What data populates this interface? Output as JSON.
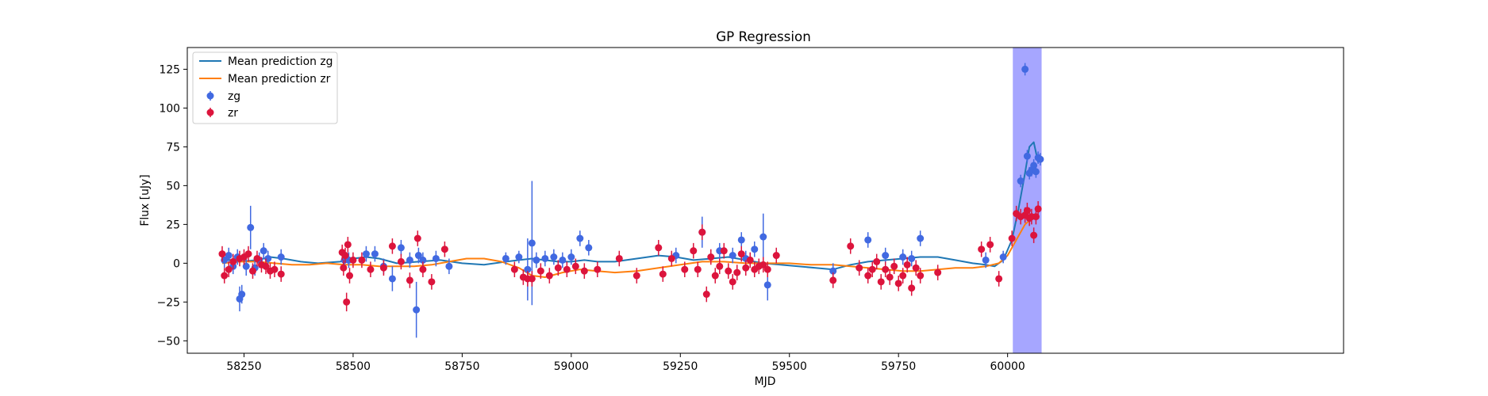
{
  "chart_data": {
    "type": "scatter",
    "title": "GP Regression",
    "xlabel": "MJD",
    "ylabel": "Flux [uJy]",
    "xlim": [
      58120,
      60770
    ],
    "ylim": [
      -58,
      139
    ],
    "xticks": [
      58250,
      58500,
      58750,
      59000,
      59250,
      59500,
      59750,
      60000
    ],
    "yticks": [
      -50,
      -25,
      0,
      25,
      50,
      75,
      100,
      125
    ],
    "highlight_band": {
      "x0": 60012,
      "x1": 60078,
      "color": "#0000ff",
      "opacity": 0.35
    },
    "colors": {
      "zg": "#4169e1",
      "zr": "#dc143c",
      "mean_zg": "#1f77b4",
      "mean_zr": "#ff7f0e"
    },
    "legend": {
      "position": "upper-left",
      "entries": [
        {
          "label": "Mean prediction zg",
          "kind": "line",
          "color": "#1f77b4"
        },
        {
          "label": "Mean prediction zr",
          "kind": "line",
          "color": "#ff7f0e"
        },
        {
          "label": "zg",
          "kind": "point",
          "color": "#4169e1"
        },
        {
          "label": "zr",
          "kind": "point",
          "color": "#dc143c"
        }
      ]
    },
    "series": [
      {
        "name": "Mean prediction zg",
        "kind": "line",
        "color": "#1f77b4",
        "x": [
          58200,
          58240,
          58280,
          58310,
          58340,
          58380,
          58420,
          58470,
          58500,
          58530,
          58560,
          58600,
          58650,
          58700,
          58750,
          58800,
          58850,
          58880,
          58910,
          58940,
          58970,
          59000,
          59030,
          59060,
          59100,
          59150,
          59200,
          59240,
          59280,
          59320,
          59360,
          59400,
          59440,
          59480,
          59520,
          59560,
          59600,
          59640,
          59680,
          59720,
          59760,
          59800,
          59840,
          59880,
          59920,
          59950,
          59970,
          59990,
          60010,
          60025,
          60040,
          60050,
          60060,
          60070
        ],
        "y": [
          3,
          1,
          2,
          4,
          3,
          1,
          0,
          1,
          3,
          4,
          3,
          0,
          1,
          2,
          0,
          -1,
          1,
          2,
          3,
          2,
          1,
          1,
          2,
          1,
          1,
          3,
          5,
          4,
          2,
          3,
          4,
          2,
          0,
          -1,
          -2,
          -3,
          -4,
          -1,
          1,
          2,
          3,
          4,
          4,
          2,
          0,
          -1,
          -2,
          2,
          15,
          35,
          58,
          75,
          78,
          65
        ]
      },
      {
        "name": "Mean prediction zr",
        "kind": "line",
        "color": "#ff7f0e",
        "x": [
          58200,
          58240,
          58280,
          58320,
          58360,
          58400,
          58440,
          58480,
          58520,
          58560,
          58600,
          58640,
          58680,
          58720,
          58760,
          58800,
          58840,
          58880,
          58910,
          58940,
          58980,
          59020,
          59060,
          59100,
          59150,
          59200,
          59250,
          59300,
          59350,
          59400,
          59450,
          59500,
          59550,
          59600,
          59640,
          59680,
          59720,
          59760,
          59800,
          59840,
          59880,
          59920,
          59950,
          59980,
          60000,
          60020,
          60040,
          60060,
          60070
        ],
        "y": [
          0,
          1,
          1,
          0,
          -1,
          -1,
          0,
          -1,
          -1,
          -2,
          -2,
          -2,
          -1,
          1,
          3,
          3,
          1,
          -3,
          -8,
          -9,
          -6,
          -4,
          -5,
          -6,
          -5,
          -3,
          -1,
          1,
          1,
          0,
          0,
          0,
          -1,
          -1,
          -2,
          -3,
          -4,
          -5,
          -5,
          -4,
          -3,
          -3,
          -2,
          0,
          5,
          15,
          25,
          30,
          31
        ]
      },
      {
        "name": "zg",
        "kind": "errorbar",
        "color": "#4169e1",
        "x": [
          58205,
          58215,
          58225,
          58235,
          58240,
          58245,
          58255,
          58265,
          58275,
          58285,
          58295,
          58305,
          58335,
          58480,
          58490,
          58530,
          58550,
          58570,
          58590,
          58610,
          58630,
          58645,
          58650,
          58660,
          58690,
          58720,
          58850,
          58880,
          58900,
          58910,
          58920,
          58940,
          58960,
          58980,
          59000,
          59020,
          59040,
          59240,
          59300,
          59340,
          59370,
          59390,
          59400,
          59420,
          59440,
          59450,
          59600,
          59680,
          59720,
          59760,
          59780,
          59800,
          59950,
          59990,
          60030,
          60040,
          60045,
          60050,
          60055,
          60060,
          60065,
          60070,
          60075
        ],
        "y": [
          2,
          5,
          -2,
          4,
          -23,
          -20,
          -2,
          23,
          -3,
          2,
          8,
          3,
          4,
          2,
          2,
          6,
          6,
          -2,
          -10,
          10,
          2,
          -30,
          5,
          2,
          3,
          -2,
          3,
          4,
          -4,
          13,
          2,
          3,
          4,
          2,
          4,
          16,
          10,
          5,
          20,
          8,
          5,
          15,
          3,
          9,
          17,
          -14,
          -5,
          15,
          5,
          4,
          3,
          16,
          2,
          4,
          53,
          125,
          69,
          58,
          60,
          63,
          59,
          68,
          67
        ],
        "err": [
          5,
          5,
          5,
          5,
          8,
          6,
          6,
          14,
          5,
          5,
          5,
          5,
          5,
          5,
          5,
          5,
          5,
          5,
          8,
          5,
          5,
          18,
          5,
          5,
          5,
          5,
          4,
          4,
          20,
          40,
          5,
          5,
          5,
          5,
          5,
          5,
          5,
          5,
          10,
          5,
          5,
          5,
          5,
          5,
          15,
          10,
          5,
          5,
          5,
          5,
          5,
          5,
          5,
          4,
          4,
          4,
          4,
          4,
          4,
          4,
          4,
          4,
          4
        ]
      },
      {
        "name": "zr",
        "kind": "errorbar",
        "color": "#dc143c",
        "x": [
          58200,
          58205,
          58215,
          58225,
          58240,
          58250,
          58260,
          58270,
          58280,
          58290,
          58300,
          58310,
          58320,
          58335,
          58475,
          58478,
          58482,
          58485,
          58488,
          58492,
          58500,
          58520,
          58540,
          58570,
          58590,
          58610,
          58630,
          58648,
          58660,
          58680,
          58710,
          58870,
          58890,
          58900,
          58910,
          58930,
          58950,
          58970,
          58990,
          59010,
          59030,
          59060,
          59110,
          59150,
          59200,
          59210,
          59230,
          59260,
          59280,
          59290,
          59300,
          59310,
          59320,
          59330,
          59340,
          59350,
          59360,
          59370,
          59380,
          59390,
          59400,
          59410,
          59420,
          59430,
          59440,
          59450,
          59470,
          59600,
          59640,
          59660,
          59680,
          59690,
          59700,
          59710,
          59720,
          59730,
          59740,
          59750,
          59760,
          59770,
          59780,
          59790,
          59800,
          59840,
          59940,
          59960,
          59980,
          60010,
          60020,
          60030,
          60040,
          60045,
          60050,
          60055,
          60060,
          60065,
          60070
        ],
        "y": [
          6,
          -8,
          -4,
          1,
          3,
          4,
          6,
          -5,
          3,
          -1,
          -2,
          -5,
          -4,
          -7,
          7,
          -3,
          5,
          -25,
          12,
          -8,
          2,
          2,
          -4,
          -3,
          11,
          1,
          -11,
          16,
          -4,
          -12,
          9,
          -4,
          -9,
          -10,
          -10,
          -5,
          -8,
          -3,
          -4,
          -2,
          -5,
          -4,
          3,
          -8,
          10,
          -7,
          3,
          -4,
          8,
          -4,
          20,
          -20,
          4,
          -8,
          -2,
          8,
          -5,
          -12,
          -6,
          6,
          -3,
          2,
          -4,
          -2,
          -1,
          -4,
          5,
          -11,
          11,
          -3,
          -8,
          -4,
          1,
          -12,
          -4,
          -9,
          -2,
          -13,
          -8,
          -1,
          -16,
          -3,
          -8,
          -6,
          9,
          12,
          -10,
          16,
          32,
          30,
          31,
          34,
          29,
          30,
          18,
          30,
          35
        ],
        "err": [
          5,
          5,
          5,
          5,
          5,
          5,
          5,
          5,
          5,
          5,
          5,
          5,
          5,
          5,
          5,
          5,
          5,
          6,
          5,
          5,
          5,
          5,
          5,
          5,
          5,
          5,
          5,
          5,
          5,
          5,
          5,
          5,
          5,
          5,
          5,
          5,
          5,
          5,
          5,
          5,
          5,
          5,
          5,
          5,
          5,
          5,
          5,
          5,
          5,
          5,
          5,
          5,
          5,
          5,
          5,
          5,
          5,
          5,
          5,
          5,
          5,
          5,
          5,
          5,
          5,
          5,
          5,
          5,
          5,
          5,
          5,
          5,
          5,
          5,
          5,
          5,
          5,
          5,
          5,
          5,
          5,
          5,
          5,
          5,
          5,
          5,
          5,
          5,
          5,
          5,
          5,
          5,
          5,
          5,
          5,
          5,
          5
        ]
      }
    ]
  }
}
